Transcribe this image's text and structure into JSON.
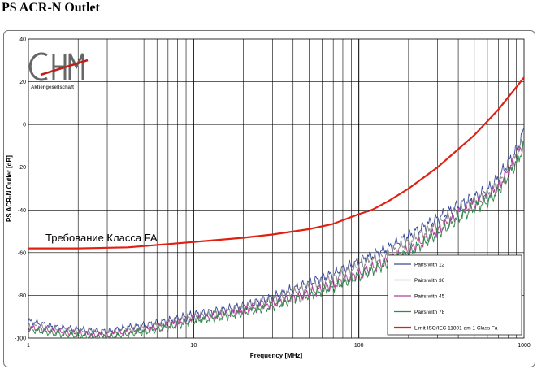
{
  "page": {
    "title": "PS ACR-N Outlet"
  },
  "logo": {
    "text": "CHM",
    "subtitle": "Aktiengesellschaft"
  },
  "annotation": {
    "text": "Требование Класса FA"
  },
  "chart_data": {
    "type": "line",
    "xlabel": "Frequency [MHz]",
    "ylabel": "PS ACR-N Outlet [dB]",
    "xscale": "log",
    "xlim": [
      1,
      1000
    ],
    "ylim": [
      -100,
      40
    ],
    "grid": true,
    "legend_position": "bottom-right",
    "xticks": [
      1,
      10,
      100,
      1000
    ],
    "xtick_labels": [
      "1",
      "10",
      "100",
      "1000"
    ],
    "yticks": [
      -100,
      -80,
      -60,
      -40,
      -20,
      0,
      20,
      40
    ],
    "ytick_labels": [
      "-100",
      "-80",
      "-60",
      "-40",
      "-20",
      "0",
      "20",
      "40"
    ],
    "series": [
      {
        "name": "Pairs with 12",
        "color": "#3a4a9a",
        "x": [
          1,
          1.5,
          2,
          3,
          4,
          5,
          7,
          10,
          15,
          20,
          30,
          50,
          70,
          100,
          150,
          200,
          300,
          400,
          500,
          600,
          700,
          800,
          900,
          1000
        ],
        "y": [
          -92,
          -95,
          -96,
          -97,
          -95,
          -94,
          -92,
          -89,
          -87,
          -85,
          -81,
          -74,
          -70,
          -64,
          -58,
          -52,
          -44,
          -38,
          -34,
          -31,
          -25,
          -18,
          -12,
          -3
        ]
      },
      {
        "name": "Pairs with 36",
        "color": "#8a8a8a",
        "x": [
          1,
          1.5,
          2,
          3,
          4,
          5,
          7,
          10,
          15,
          20,
          30,
          50,
          70,
          100,
          150,
          200,
          300,
          400,
          500,
          600,
          700,
          800,
          900,
          1000
        ],
        "y": [
          -94,
          -96,
          -97,
          -98,
          -96,
          -95,
          -93,
          -90,
          -88,
          -86,
          -82,
          -76,
          -72,
          -66,
          -61,
          -55,
          -47,
          -40,
          -36,
          -33,
          -28,
          -21,
          -15,
          -7
        ]
      },
      {
        "name": "Pairs with 45",
        "color": "#b0409a",
        "x": [
          1,
          1.5,
          2,
          3,
          4,
          5,
          7,
          10,
          15,
          20,
          30,
          50,
          70,
          100,
          150,
          200,
          300,
          400,
          500,
          600,
          700,
          800,
          900,
          1000
        ],
        "y": [
          -95,
          -97,
          -98,
          -99,
          -97,
          -96,
          -94,
          -91,
          -89,
          -87,
          -84,
          -79,
          -75,
          -70,
          -64,
          -59,
          -50,
          -42,
          -37,
          -34,
          -29,
          -22,
          -16,
          -8
        ]
      },
      {
        "name": "Pairs with 78",
        "color": "#2e8b4a",
        "x": [
          1,
          1.5,
          2,
          3,
          4,
          5,
          7,
          10,
          15,
          20,
          30,
          50,
          70,
          100,
          150,
          200,
          300,
          400,
          500,
          600,
          700,
          800,
          900,
          1000
        ],
        "y": [
          -96,
          -98,
          -99,
          -100,
          -98,
          -97,
          -95,
          -92,
          -90,
          -88,
          -85,
          -80,
          -76,
          -71,
          -65,
          -60,
          -51,
          -44,
          -39,
          -36,
          -31,
          -24,
          -18,
          -10
        ]
      },
      {
        "name": "Limit ISO/IEC 11801 am 1 Class Fa",
        "color": "#e02010",
        "x": [
          1,
          2,
          4,
          7,
          10,
          20,
          30,
          50,
          70,
          100,
          120,
          150,
          200,
          300,
          500,
          700,
          1000
        ],
        "y": [
          -58,
          -58,
          -57.5,
          -56,
          -55,
          -53,
          -51.5,
          -49,
          -46.5,
          -42,
          -40,
          -36,
          -30,
          -20,
          -5,
          7,
          22
        ]
      }
    ]
  }
}
